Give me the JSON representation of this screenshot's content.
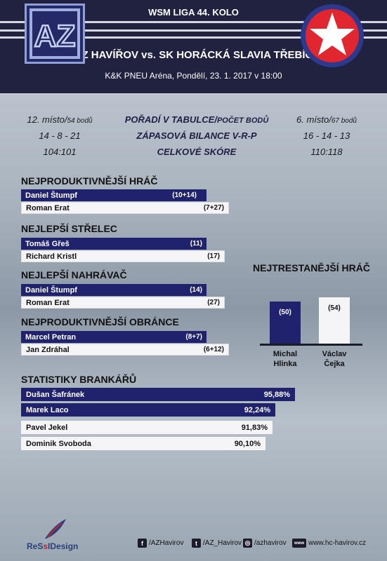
{
  "header": {
    "league": "WSM LIGA 44. KOLO",
    "match": "AZ HAVÍŘOV vs. SK HORÁCKÁ SLAVIA TŘEBÍČ",
    "venue": "K&K PNEU Aréna, Pondělí, 23. 1. 2017 v 18:00",
    "home_logo_text": "AZ"
  },
  "comparison": {
    "home_rank": "12. místo/",
    "home_points": "54 bodů",
    "away_rank": "6. místo/",
    "away_points": "67 bodů",
    "label_rank": "POŘADÍ V TABULCE/",
    "label_points": "POČET BODŮ",
    "label_record": "ZÁPASOVÁ BILANCE V-R-P",
    "label_score": "CELKOVÉ SKÓRE",
    "home_record": "14 - 8 - 21",
    "away_record": "16 - 14 - 13",
    "home_score": "104:101",
    "away_score": "110:118"
  },
  "sections": {
    "productive": {
      "title": "NEJPRODUKTIVNĚJŠÍ HRÁČ",
      "rows": [
        {
          "name": "Daniel Štumpf",
          "value": "(10+14)",
          "fraction": 1.0
        },
        {
          "name": "Roman Erat",
          "value": "(7+27)",
          "fraction": 1.0
        }
      ]
    },
    "shooter": {
      "title": "NEJLEPŠÍ STŘELEC",
      "rows": [
        {
          "name": "Tomáš Gřeš",
          "value": "(11)"
        },
        {
          "name": "Richard Kristl",
          "value": "(17)"
        }
      ]
    },
    "passer": {
      "title": "NEJLEPŠÍ NAHRÁVAČ",
      "rows": [
        {
          "name": "Daniel Štumpf",
          "value": "(14)"
        },
        {
          "name": "Roman Erat",
          "value": "(27)"
        }
      ]
    },
    "defender": {
      "title": "NEJPRODUKTIVNĚJŠÍ OBRÁNCE",
      "rows": [
        {
          "name": "Marcel Petran",
          "value": "(8+7)"
        },
        {
          "name": "Jan Zdráhal",
          "value": "(6+12)"
        }
      ]
    },
    "goalies": {
      "title": "STATISTIKY BRANKÁŘŮ",
      "rows": [
        {
          "name": "Dušan Šafránek",
          "value": "95,88%"
        },
        {
          "name": "Marek Laco",
          "value": "92,24%"
        },
        {
          "name": "Pavel Jekel",
          "value": "91,83%"
        },
        {
          "name": "Dominik Svoboda",
          "value": "90,10%"
        }
      ]
    }
  },
  "chart_data": {
    "type": "bar",
    "title": "NEJTRESTANĚJŠÍ HRÁČ",
    "categories": [
      "Michal Hlinka",
      "Václav Čejka"
    ],
    "values": [
      50,
      54
    ],
    "labels": [
      "(50)",
      "(54)"
    ],
    "name_lines": [
      [
        "Michal",
        "Hlinka"
      ],
      [
        "Václav",
        "Čejka"
      ]
    ],
    "colors": [
      "#20226e",
      "#f5f5f7"
    ],
    "ylim": [
      0,
      60
    ]
  },
  "footer": {
    "credit_a": "ReS",
    "credit_b": "s",
    "credit_c": "IDesign",
    "facebook": "/AZHavirov",
    "twitter": "/AZ_Havirov",
    "instagram": "/azhavirov",
    "web": "www.hc-havirov.cz",
    "icon_facebook": "f",
    "icon_twitter": "t",
    "icon_instagram": "◎",
    "icon_web": "www"
  }
}
